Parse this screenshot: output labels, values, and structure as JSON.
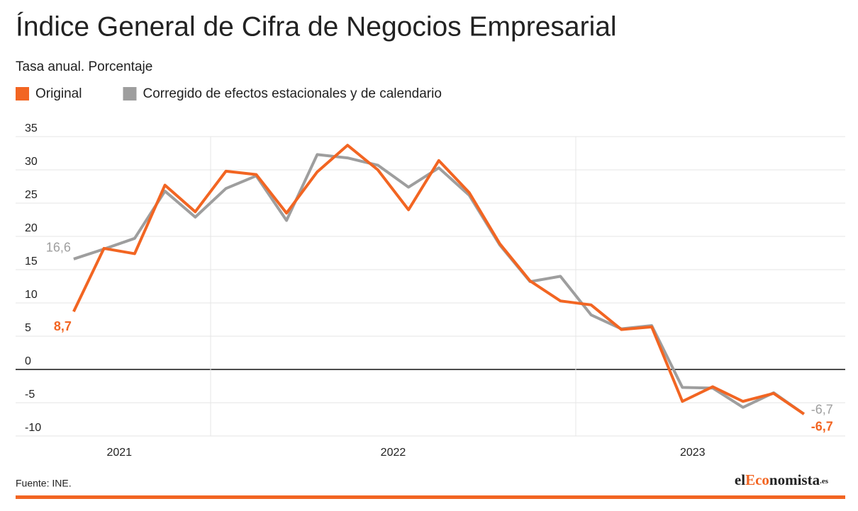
{
  "chart_data": {
    "type": "line",
    "title": "Índice General de Cifra de Negocios Empresarial",
    "subtitle": "Tasa anual. Porcentaje",
    "source": "Fuente: INE.",
    "logo": [
      "el",
      "Eco",
      "nomista",
      ".es"
    ],
    "x": [
      2021.625,
      2021.708,
      2021.792,
      2021.875,
      2021.958,
      2022.042,
      2022.125,
      2022.208,
      2022.292,
      2022.375,
      2022.458,
      2022.542,
      2022.625,
      2022.708,
      2022.792,
      2022.875,
      2022.958,
      2023.042,
      2023.125,
      2023.208,
      2023.292,
      2023.375,
      2023.458,
      2023.542,
      2023.625
    ],
    "xlim": [
      2021.466,
      2023.738
    ],
    "xticks": [
      {
        "value": 2021.75,
        "label": "2021"
      },
      {
        "value": 2022.5,
        "label": "2022"
      },
      {
        "value": 2023.32,
        "label": "2023"
      }
    ],
    "xgrid": [
      2022,
      2023
    ],
    "ylim": [
      -10,
      35
    ],
    "yticks": [
      35,
      30,
      25,
      20,
      15,
      10,
      5,
      0,
      -5,
      -10
    ],
    "grid": true,
    "series": [
      {
        "name": "Original",
        "color": "#f26522",
        "values": [
          8.7,
          18.2,
          17.4,
          27.7,
          23.7,
          29.8,
          29.3,
          23.5,
          29.7,
          33.7,
          30.0,
          24.0,
          31.4,
          26.6,
          18.9,
          13.3,
          10.3,
          9.7,
          6.0,
          6.4,
          -4.8,
          -2.6,
          -4.8,
          -3.6,
          -6.7
        ],
        "value_labels": [
          "8,7",
          null,
          null,
          null,
          null,
          null,
          null,
          null,
          null,
          null,
          null,
          null,
          null,
          null,
          null,
          null,
          null,
          null,
          null,
          null,
          null,
          null,
          null,
          null,
          "-6,7"
        ]
      },
      {
        "name": "Corregido de efectos estacionales y de calendario",
        "color": "#9e9e9e",
        "values": [
          16.6,
          18.1,
          19.7,
          26.8,
          22.9,
          27.2,
          29.1,
          22.4,
          32.3,
          31.8,
          30.7,
          27.4,
          30.3,
          26.2,
          18.7,
          13.2,
          14.0,
          8.2,
          6.1,
          6.6,
          -2.7,
          -2.8,
          -5.7,
          -3.5,
          -6.7
        ],
        "value_labels": [
          "16,6",
          null,
          null,
          null,
          null,
          null,
          null,
          null,
          null,
          null,
          null,
          null,
          null,
          null,
          null,
          null,
          null,
          null,
          null,
          null,
          null,
          null,
          null,
          null,
          "-6,7"
        ]
      }
    ]
  }
}
